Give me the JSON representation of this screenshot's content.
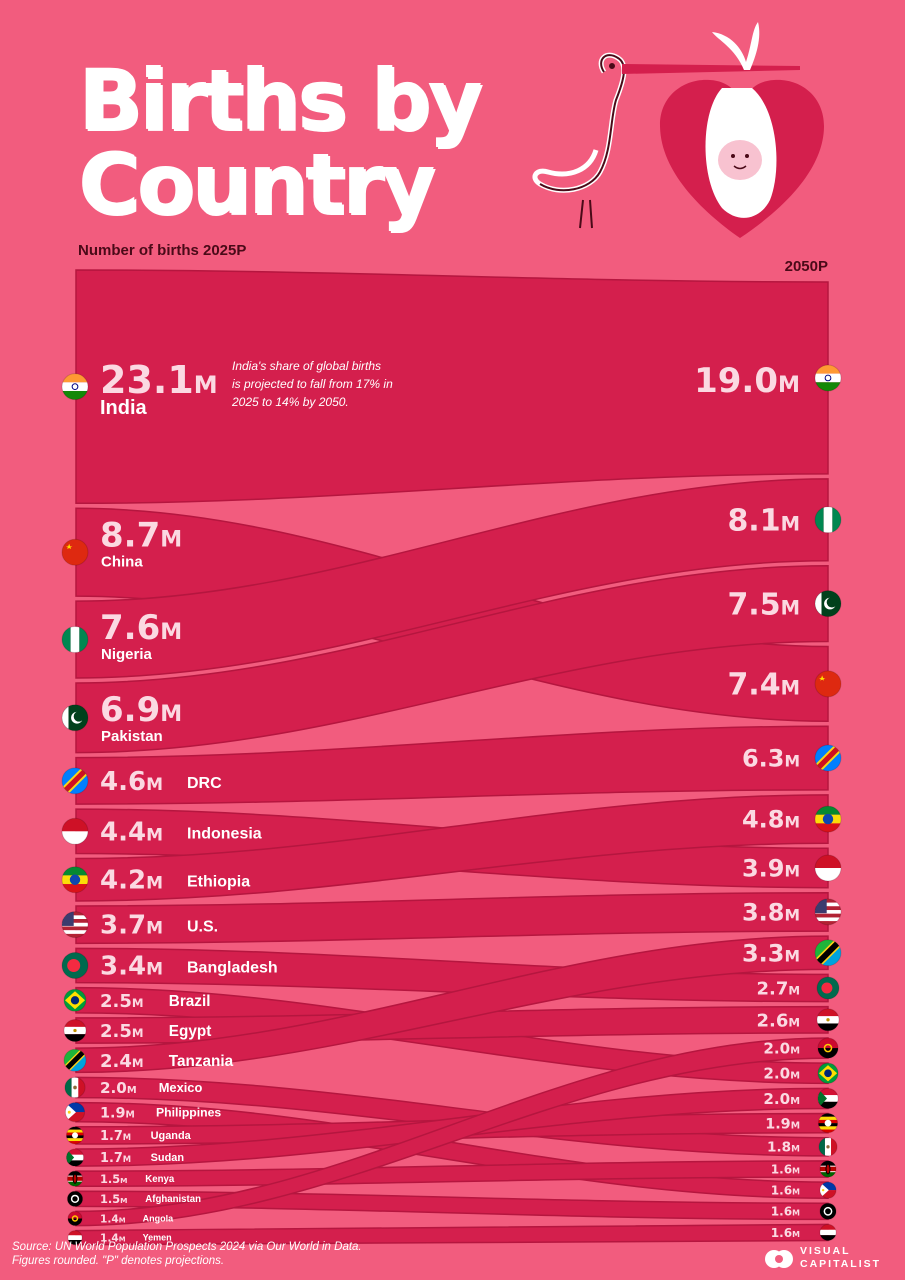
{
  "title": {
    "line1": "Births by",
    "line2": "Country"
  },
  "labels": {
    "left": "Number of births 2025P",
    "right": "2050P"
  },
  "note": "India's share of global births is projected to fall from 17% in 2025 to 14% by 2050.",
  "unit": "M",
  "source": "Source: UN World Population Prospects 2024 via Our World in Data.",
  "footnote": "Figures rounded. \"P\" denotes projections.",
  "brand": {
    "line1": "VISUAL",
    "line2": "CAPITALIST"
  },
  "colors": {
    "background": "#f25c7e",
    "ribbon": "#d41f4d",
    "ribbon_dark": "#b5163f",
    "value_text": "#fbd9e2"
  },
  "chart_data": {
    "type": "bump",
    "title": "Births by Country",
    "unit": "millions of births",
    "periods": [
      "2025P",
      "2050P"
    ],
    "series": [
      {
        "name": "India",
        "v2025": 23.1,
        "v2050": 19.0,
        "flag": "india-flag-icon"
      },
      {
        "name": "China",
        "v2025": 8.7,
        "v2050": 7.4,
        "flag": "china-flag-icon"
      },
      {
        "name": "Nigeria",
        "v2025": 7.6,
        "v2050": 8.1,
        "flag": "nigeria-flag-icon"
      },
      {
        "name": "Pakistan",
        "v2025": 6.9,
        "v2050": 7.5,
        "flag": "pakistan-flag-icon"
      },
      {
        "name": "DRC",
        "v2025": 4.6,
        "v2050": 6.3,
        "flag": "drc-flag-icon"
      },
      {
        "name": "Indonesia",
        "v2025": 4.4,
        "v2050": 3.9,
        "flag": "indonesia-flag-icon"
      },
      {
        "name": "Ethiopia",
        "v2025": 4.2,
        "v2050": 4.8,
        "flag": "ethiopia-flag-icon"
      },
      {
        "name": "U.S.",
        "v2025": 3.7,
        "v2050": 3.8,
        "flag": "us-flag-icon"
      },
      {
        "name": "Bangladesh",
        "v2025": 3.4,
        "v2050": 2.7,
        "flag": "bangladesh-flag-icon"
      },
      {
        "name": "Brazil",
        "v2025": 2.5,
        "v2050": 2.0,
        "flag": "brazil-flag-icon"
      },
      {
        "name": "Egypt",
        "v2025": 2.5,
        "v2050": 2.6,
        "flag": "egypt-flag-icon"
      },
      {
        "name": "Tanzania",
        "v2025": 2.4,
        "v2050": 3.3,
        "flag": "tanzania-flag-icon"
      },
      {
        "name": "Mexico",
        "v2025": 2.0,
        "v2050": 1.8,
        "flag": "mexico-flag-icon"
      },
      {
        "name": "Philippines",
        "v2025": 1.9,
        "v2050": 1.6,
        "flag": "philippines-flag-icon"
      },
      {
        "name": "Uganda",
        "v2025": 1.7,
        "v2050": 1.9,
        "flag": "uganda-flag-icon"
      },
      {
        "name": "Sudan",
        "v2025": 1.7,
        "v2050": 2.0,
        "flag": "sudan-flag-icon"
      },
      {
        "name": "Kenya",
        "v2025": 1.5,
        "v2050": 1.6,
        "flag": "kenya-flag-icon"
      },
      {
        "name": "Afghanistan",
        "v2025": 1.5,
        "v2050": 1.6,
        "flag": "afghanistan-flag-icon"
      },
      {
        "name": "Angola",
        "v2025": 1.4,
        "v2050": 2.0,
        "flag": "angola-flag-icon"
      },
      {
        "name": "Yemen",
        "v2025": 1.4,
        "v2050": 1.6,
        "flag": "yemen-flag-icon"
      }
    ],
    "right_order": [
      "India",
      "Nigeria",
      "Pakistan",
      "China",
      "DRC",
      "Ethiopia",
      "Indonesia",
      "U.S.",
      "Tanzania",
      "Bangladesh",
      "Egypt",
      "Angola",
      "Brazil",
      "Sudan",
      "Uganda",
      "Mexico",
      "Kenya",
      "Philippines",
      "Afghanistan",
      "Yemen"
    ]
  }
}
